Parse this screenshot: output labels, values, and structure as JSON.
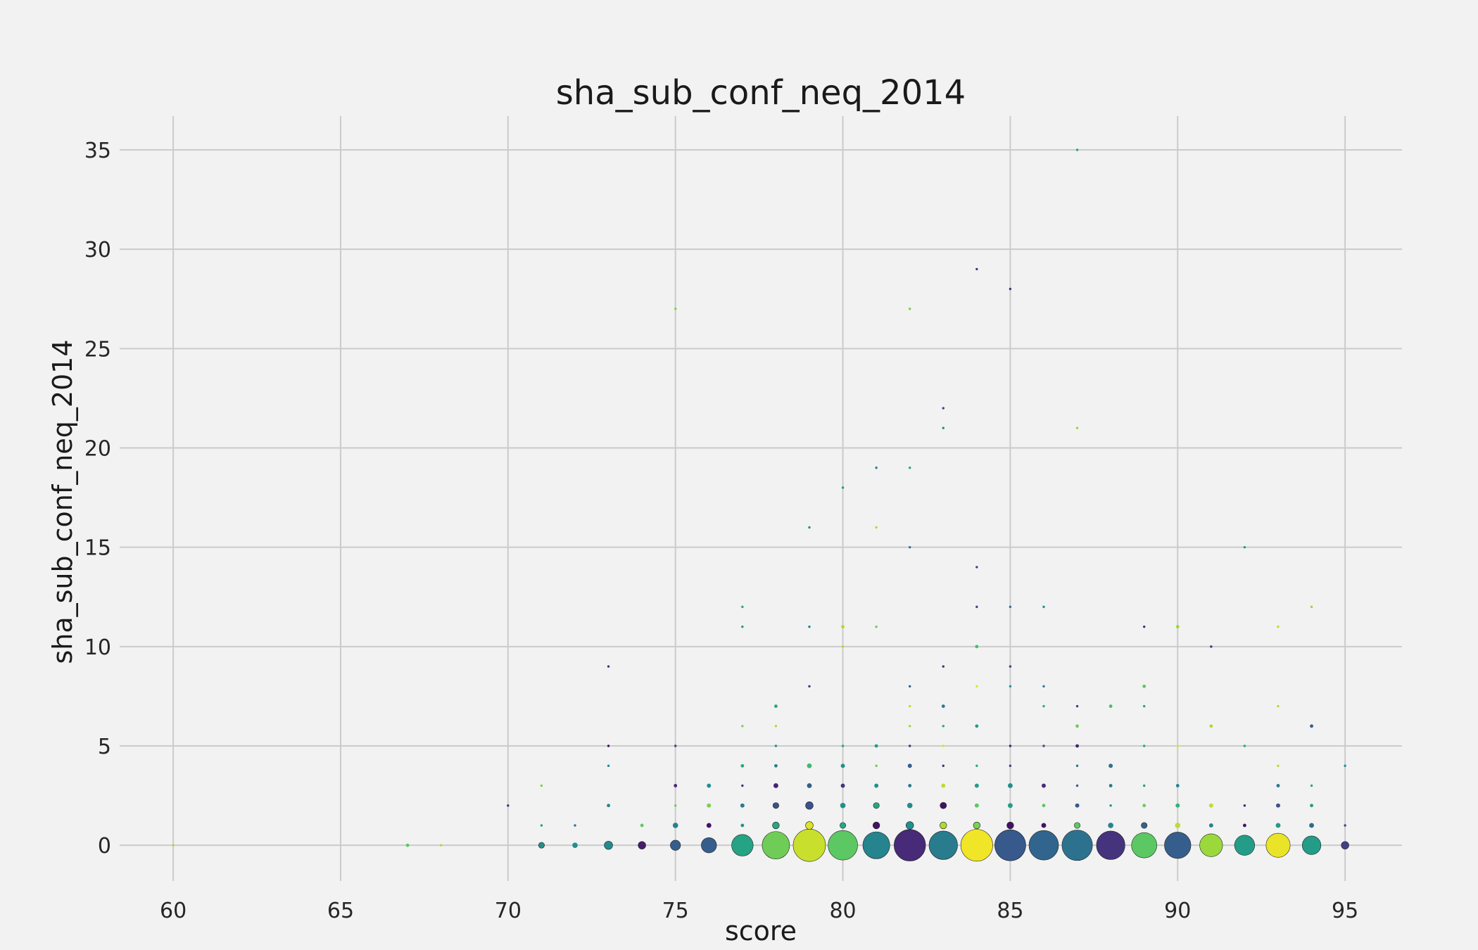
{
  "chart_data": {
    "type": "scatter",
    "title": "sha_sub_conf_neq_2014",
    "xlabel": "score",
    "ylabel": "sha_sub_conf_neq_2014",
    "xlim": [
      58.4,
      96.7
    ],
    "ylim": [
      -1.8,
      36.7
    ],
    "xticks": [
      60,
      65,
      70,
      75,
      80,
      85,
      90,
      95
    ],
    "yticks": [
      0,
      5,
      10,
      15,
      20,
      25,
      30,
      35
    ],
    "grid": true,
    "colormap": "viridis",
    "size_encoding": "marker area grows with number of observations at each point",
    "points": [
      {
        "x": 60,
        "y": 0,
        "s": 1,
        "c": 0.88
      },
      {
        "x": 67,
        "y": 0,
        "s": 2,
        "c": 0.75
      },
      {
        "x": 68,
        "y": 0,
        "s": 1,
        "c": 0.88
      },
      {
        "x": 70,
        "y": 2,
        "s": 1,
        "c": 0.15
      },
      {
        "x": 71,
        "y": 0,
        "s": 6,
        "c": 0.5
      },
      {
        "x": 71,
        "y": 1,
        "s": 1,
        "c": 0.55
      },
      {
        "x": 71,
        "y": 3,
        "s": 1,
        "c": 0.8
      },
      {
        "x": 72,
        "y": 0,
        "s": 5,
        "c": 0.5
      },
      {
        "x": 72,
        "y": 1,
        "s": 1,
        "c": 0.4
      },
      {
        "x": 73,
        "y": 0,
        "s": 12,
        "c": 0.48
      },
      {
        "x": 73,
        "y": 2,
        "s": 2,
        "c": 0.45
      },
      {
        "x": 73,
        "y": 4,
        "s": 1,
        "c": 0.5
      },
      {
        "x": 73,
        "y": 5,
        "s": 1,
        "c": 0.05
      },
      {
        "x": 73,
        "y": 9,
        "s": 1,
        "c": 0.15
      },
      {
        "x": 74,
        "y": 0,
        "s": 10,
        "c": 0.08
      },
      {
        "x": 74,
        "y": 1,
        "s": 2,
        "c": 0.75
      },
      {
        "x": 75,
        "y": 0,
        "s": 18,
        "c": 0.3
      },
      {
        "x": 75,
        "y": 1,
        "s": 5,
        "c": 0.45
      },
      {
        "x": 75,
        "y": 2,
        "s": 1,
        "c": 0.78
      },
      {
        "x": 75,
        "y": 3,
        "s": 2,
        "c": 0.12
      },
      {
        "x": 75,
        "y": 5,
        "s": 1,
        "c": 0.2
      },
      {
        "x": 75,
        "y": 27,
        "s": 1,
        "c": 0.8
      },
      {
        "x": 76,
        "y": 0,
        "s": 40,
        "c": 0.3
      },
      {
        "x": 76,
        "y": 1,
        "s": 4,
        "c": 0.05
      },
      {
        "x": 76,
        "y": 2,
        "s": 3,
        "c": 0.8
      },
      {
        "x": 76,
        "y": 3,
        "s": 3,
        "c": 0.5
      },
      {
        "x": 77,
        "y": 0,
        "s": 80,
        "c": 0.58
      },
      {
        "x": 77,
        "y": 1,
        "s": 2,
        "c": 0.5
      },
      {
        "x": 77,
        "y": 2,
        "s": 3,
        "c": 0.42
      },
      {
        "x": 77,
        "y": 3,
        "s": 1,
        "c": 0.15
      },
      {
        "x": 77,
        "y": 4,
        "s": 2,
        "c": 0.6
      },
      {
        "x": 77,
        "y": 6,
        "s": 1,
        "c": 0.8
      },
      {
        "x": 77,
        "y": 11,
        "s": 1,
        "c": 0.55
      },
      {
        "x": 77,
        "y": 12,
        "s": 1,
        "c": 0.6
      },
      {
        "x": 78,
        "y": 0,
        "s": 130,
        "c": 0.78
      },
      {
        "x": 78,
        "y": 1,
        "s": 8,
        "c": 0.6
      },
      {
        "x": 78,
        "y": 2,
        "s": 6,
        "c": 0.25
      },
      {
        "x": 78,
        "y": 3,
        "s": 4,
        "c": 0.1
      },
      {
        "x": 78,
        "y": 4,
        "s": 2,
        "c": 0.45
      },
      {
        "x": 78,
        "y": 5,
        "s": 1,
        "c": 0.5
      },
      {
        "x": 78,
        "y": 6,
        "s": 1,
        "c": 0.88
      },
      {
        "x": 78,
        "y": 7,
        "s": 2,
        "c": 0.6
      },
      {
        "x": 79,
        "y": 0,
        "s": 180,
        "c": 0.92
      },
      {
        "x": 79,
        "y": 1,
        "s": 10,
        "c": 0.95
      },
      {
        "x": 79,
        "y": 2,
        "s": 10,
        "c": 0.25
      },
      {
        "x": 79,
        "y": 3,
        "s": 4,
        "c": 0.3
      },
      {
        "x": 79,
        "y": 4,
        "s": 4,
        "c": 0.68
      },
      {
        "x": 79,
        "y": 8,
        "s": 1,
        "c": 0.15
      },
      {
        "x": 79,
        "y": 11,
        "s": 1,
        "c": 0.45
      },
      {
        "x": 79,
        "y": 16,
        "s": 1,
        "c": 0.5
      },
      {
        "x": 80,
        "y": 0,
        "s": 150,
        "c": 0.75
      },
      {
        "x": 80,
        "y": 1,
        "s": 6,
        "c": 0.6
      },
      {
        "x": 80,
        "y": 2,
        "s": 5,
        "c": 0.5
      },
      {
        "x": 80,
        "y": 3,
        "s": 3,
        "c": 0.15
      },
      {
        "x": 80,
        "y": 4,
        "s": 3,
        "c": 0.5
      },
      {
        "x": 80,
        "y": 5,
        "s": 1,
        "c": 0.6
      },
      {
        "x": 80,
        "y": 10,
        "s": 1,
        "c": 0.88
      },
      {
        "x": 80,
        "y": 11,
        "s": 2,
        "c": 0.88
      },
      {
        "x": 80,
        "y": 18,
        "s": 1,
        "c": 0.55
      },
      {
        "x": 81,
        "y": 0,
        "s": 125,
        "c": 0.45
      },
      {
        "x": 81,
        "y": 1,
        "s": 8,
        "c": 0.05
      },
      {
        "x": 81,
        "y": 2,
        "s": 6,
        "c": 0.6
      },
      {
        "x": 81,
        "y": 3,
        "s": 3,
        "c": 0.5
      },
      {
        "x": 81,
        "y": 4,
        "s": 1,
        "c": 0.78
      },
      {
        "x": 81,
        "y": 5,
        "s": 2,
        "c": 0.55
      },
      {
        "x": 81,
        "y": 11,
        "s": 1,
        "c": 0.78
      },
      {
        "x": 81,
        "y": 16,
        "s": 1,
        "c": 0.88
      },
      {
        "x": 81,
        "y": 19,
        "s": 1,
        "c": 0.45
      },
      {
        "x": 82,
        "y": 0,
        "s": 170,
        "c": 0.12
      },
      {
        "x": 82,
        "y": 1,
        "s": 10,
        "c": 0.5
      },
      {
        "x": 82,
        "y": 2,
        "s": 5,
        "c": 0.48
      },
      {
        "x": 82,
        "y": 3,
        "s": 2,
        "c": 0.4
      },
      {
        "x": 82,
        "y": 4,
        "s": 3,
        "c": 0.3
      },
      {
        "x": 82,
        "y": 5,
        "s": 1,
        "c": 0.15
      },
      {
        "x": 82,
        "y": 6,
        "s": 1,
        "c": 0.85
      },
      {
        "x": 82,
        "y": 7,
        "s": 1,
        "c": 0.9
      },
      {
        "x": 82,
        "y": 8,
        "s": 1,
        "c": 0.3
      },
      {
        "x": 82,
        "y": 15,
        "s": 1,
        "c": 0.4
      },
      {
        "x": 82,
        "y": 19,
        "s": 1,
        "c": 0.6
      },
      {
        "x": 82,
        "y": 27,
        "s": 1,
        "c": 0.8
      },
      {
        "x": 83,
        "y": 0,
        "s": 140,
        "c": 0.42
      },
      {
        "x": 83,
        "y": 1,
        "s": 8,
        "c": 0.88
      },
      {
        "x": 83,
        "y": 2,
        "s": 7,
        "c": 0.05
      },
      {
        "x": 83,
        "y": 3,
        "s": 3,
        "c": 0.9
      },
      {
        "x": 83,
        "y": 4,
        "s": 1,
        "c": 0.15
      },
      {
        "x": 83,
        "y": 5,
        "s": 1,
        "c": 0.95
      },
      {
        "x": 83,
        "y": 6,
        "s": 1,
        "c": 0.6
      },
      {
        "x": 83,
        "y": 7,
        "s": 2,
        "c": 0.42
      },
      {
        "x": 83,
        "y": 9,
        "s": 1,
        "c": 0.15
      },
      {
        "x": 83,
        "y": 21,
        "s": 1,
        "c": 0.5
      },
      {
        "x": 83,
        "y": 22,
        "s": 1,
        "c": 0.2
      },
      {
        "x": 84,
        "y": 0,
        "s": 175,
        "c": 0.98
      },
      {
        "x": 84,
        "y": 1,
        "s": 8,
        "c": 0.8
      },
      {
        "x": 84,
        "y": 2,
        "s": 3,
        "c": 0.75
      },
      {
        "x": 84,
        "y": 3,
        "s": 3,
        "c": 0.55
      },
      {
        "x": 84,
        "y": 4,
        "s": 1,
        "c": 0.6
      },
      {
        "x": 84,
        "y": 6,
        "s": 2,
        "c": 0.55
      },
      {
        "x": 84,
        "y": 8,
        "s": 1,
        "c": 0.95
      },
      {
        "x": 84,
        "y": 10,
        "s": 2,
        "c": 0.7
      },
      {
        "x": 84,
        "y": 12,
        "s": 1,
        "c": 0.2
      },
      {
        "x": 84,
        "y": 14,
        "s": 1,
        "c": 0.2
      },
      {
        "x": 84,
        "y": 29,
        "s": 1,
        "c": 0.15
      },
      {
        "x": 85,
        "y": 0,
        "s": 165,
        "c": 0.28
      },
      {
        "x": 85,
        "y": 1,
        "s": 8,
        "c": 0.05
      },
      {
        "x": 85,
        "y": 2,
        "s": 4,
        "c": 0.55
      },
      {
        "x": 85,
        "y": 3,
        "s": 4,
        "c": 0.5
      },
      {
        "x": 85,
        "y": 4,
        "s": 1,
        "c": 0.2
      },
      {
        "x": 85,
        "y": 5,
        "s": 1,
        "c": 0.1
      },
      {
        "x": 85,
        "y": 8,
        "s": 1,
        "c": 0.5
      },
      {
        "x": 85,
        "y": 9,
        "s": 1,
        "c": 0.2
      },
      {
        "x": 85,
        "y": 12,
        "s": 1,
        "c": 0.4
      },
      {
        "x": 85,
        "y": 28,
        "s": 1,
        "c": 0.15
      },
      {
        "x": 86,
        "y": 0,
        "s": 150,
        "c": 0.33
      },
      {
        "x": 86,
        "y": 1,
        "s": 4,
        "c": 0.05
      },
      {
        "x": 86,
        "y": 2,
        "s": 2,
        "c": 0.75
      },
      {
        "x": 86,
        "y": 3,
        "s": 3,
        "c": 0.12
      },
      {
        "x": 86,
        "y": 5,
        "s": 1,
        "c": 0.25
      },
      {
        "x": 86,
        "y": 7,
        "s": 1,
        "c": 0.6
      },
      {
        "x": 86,
        "y": 8,
        "s": 1,
        "c": 0.42
      },
      {
        "x": 86,
        "y": 12,
        "s": 1,
        "c": 0.5
      },
      {
        "x": 87,
        "y": 0,
        "s": 160,
        "c": 0.38
      },
      {
        "x": 87,
        "y": 1,
        "s": 6,
        "c": 0.75
      },
      {
        "x": 87,
        "y": 2,
        "s": 3,
        "c": 0.28
      },
      {
        "x": 87,
        "y": 3,
        "s": 1,
        "c": 0.3
      },
      {
        "x": 87,
        "y": 4,
        "s": 1,
        "c": 0.4
      },
      {
        "x": 87,
        "y": 5,
        "s": 2,
        "c": 0.1
      },
      {
        "x": 87,
        "y": 6,
        "s": 2,
        "c": 0.78
      },
      {
        "x": 87,
        "y": 7,
        "s": 1,
        "c": 0.15
      },
      {
        "x": 87,
        "y": 21,
        "s": 1,
        "c": 0.85
      },
      {
        "x": 87,
        "y": 35,
        "s": 1,
        "c": 0.6
      },
      {
        "x": 88,
        "y": 0,
        "s": 140,
        "c": 0.15
      },
      {
        "x": 88,
        "y": 1,
        "s": 5,
        "c": 0.45
      },
      {
        "x": 88,
        "y": 2,
        "s": 1,
        "c": 0.5
      },
      {
        "x": 88,
        "y": 3,
        "s": 2,
        "c": 0.42
      },
      {
        "x": 88,
        "y": 4,
        "s": 3,
        "c": 0.38
      },
      {
        "x": 88,
        "y": 7,
        "s": 2,
        "c": 0.7
      },
      {
        "x": 89,
        "y": 0,
        "s": 110,
        "c": 0.75
      },
      {
        "x": 89,
        "y": 1,
        "s": 6,
        "c": 0.32
      },
      {
        "x": 89,
        "y": 2,
        "s": 2,
        "c": 0.78
      },
      {
        "x": 89,
        "y": 3,
        "s": 1,
        "c": 0.55
      },
      {
        "x": 89,
        "y": 5,
        "s": 1,
        "c": 0.6
      },
      {
        "x": 89,
        "y": 7,
        "s": 1,
        "c": 0.55
      },
      {
        "x": 89,
        "y": 8,
        "s": 2,
        "c": 0.75
      },
      {
        "x": 89,
        "y": 11,
        "s": 1,
        "c": 0.15
      },
      {
        "x": 90,
        "y": 0,
        "s": 120,
        "c": 0.3
      },
      {
        "x": 90,
        "y": 1,
        "s": 5,
        "c": 0.9
      },
      {
        "x": 90,
        "y": 2,
        "s": 3,
        "c": 0.65
      },
      {
        "x": 90,
        "y": 3,
        "s": 2,
        "c": 0.45
      },
      {
        "x": 90,
        "y": 5,
        "s": 1,
        "c": 0.95
      },
      {
        "x": 90,
        "y": 11,
        "s": 2,
        "c": 0.85
      },
      {
        "x": 91,
        "y": 0,
        "s": 90,
        "c": 0.85
      },
      {
        "x": 91,
        "y": 1,
        "s": 3,
        "c": 0.45
      },
      {
        "x": 91,
        "y": 2,
        "s": 3,
        "c": 0.9
      },
      {
        "x": 91,
        "y": 6,
        "s": 2,
        "c": 0.88
      },
      {
        "x": 91,
        "y": 10,
        "s": 1,
        "c": 0.15
      },
      {
        "x": 92,
        "y": 0,
        "s": 70,
        "c": 0.55
      },
      {
        "x": 92,
        "y": 1,
        "s": 2,
        "c": 0.05
      },
      {
        "x": 92,
        "y": 2,
        "s": 1,
        "c": 0.1
      },
      {
        "x": 92,
        "y": 5,
        "s": 1,
        "c": 0.6
      },
      {
        "x": 92,
        "y": 15,
        "s": 1,
        "c": 0.55
      },
      {
        "x": 93,
        "y": 0,
        "s": 100,
        "c": 0.97
      },
      {
        "x": 93,
        "y": 1,
        "s": 4,
        "c": 0.55
      },
      {
        "x": 93,
        "y": 2,
        "s": 3,
        "c": 0.25
      },
      {
        "x": 93,
        "y": 3,
        "s": 2,
        "c": 0.4
      },
      {
        "x": 93,
        "y": 4,
        "s": 1,
        "c": 0.9
      },
      {
        "x": 93,
        "y": 7,
        "s": 1,
        "c": 0.88
      },
      {
        "x": 93,
        "y": 11,
        "s": 1,
        "c": 0.9
      },
      {
        "x": 94,
        "y": 0,
        "s": 60,
        "c": 0.55
      },
      {
        "x": 94,
        "y": 1,
        "s": 4,
        "c": 0.35
      },
      {
        "x": 94,
        "y": 2,
        "s": 2,
        "c": 0.55
      },
      {
        "x": 94,
        "y": 3,
        "s": 1,
        "c": 0.6
      },
      {
        "x": 94,
        "y": 6,
        "s": 2,
        "c": 0.28
      },
      {
        "x": 94,
        "y": 12,
        "s": 1,
        "c": 0.85
      },
      {
        "x": 95,
        "y": 0,
        "s": 10,
        "c": 0.2
      },
      {
        "x": 95,
        "y": 1,
        "s": 1,
        "c": 0.2
      },
      {
        "x": 95,
        "y": 4,
        "s": 1,
        "c": 0.5
      }
    ]
  }
}
